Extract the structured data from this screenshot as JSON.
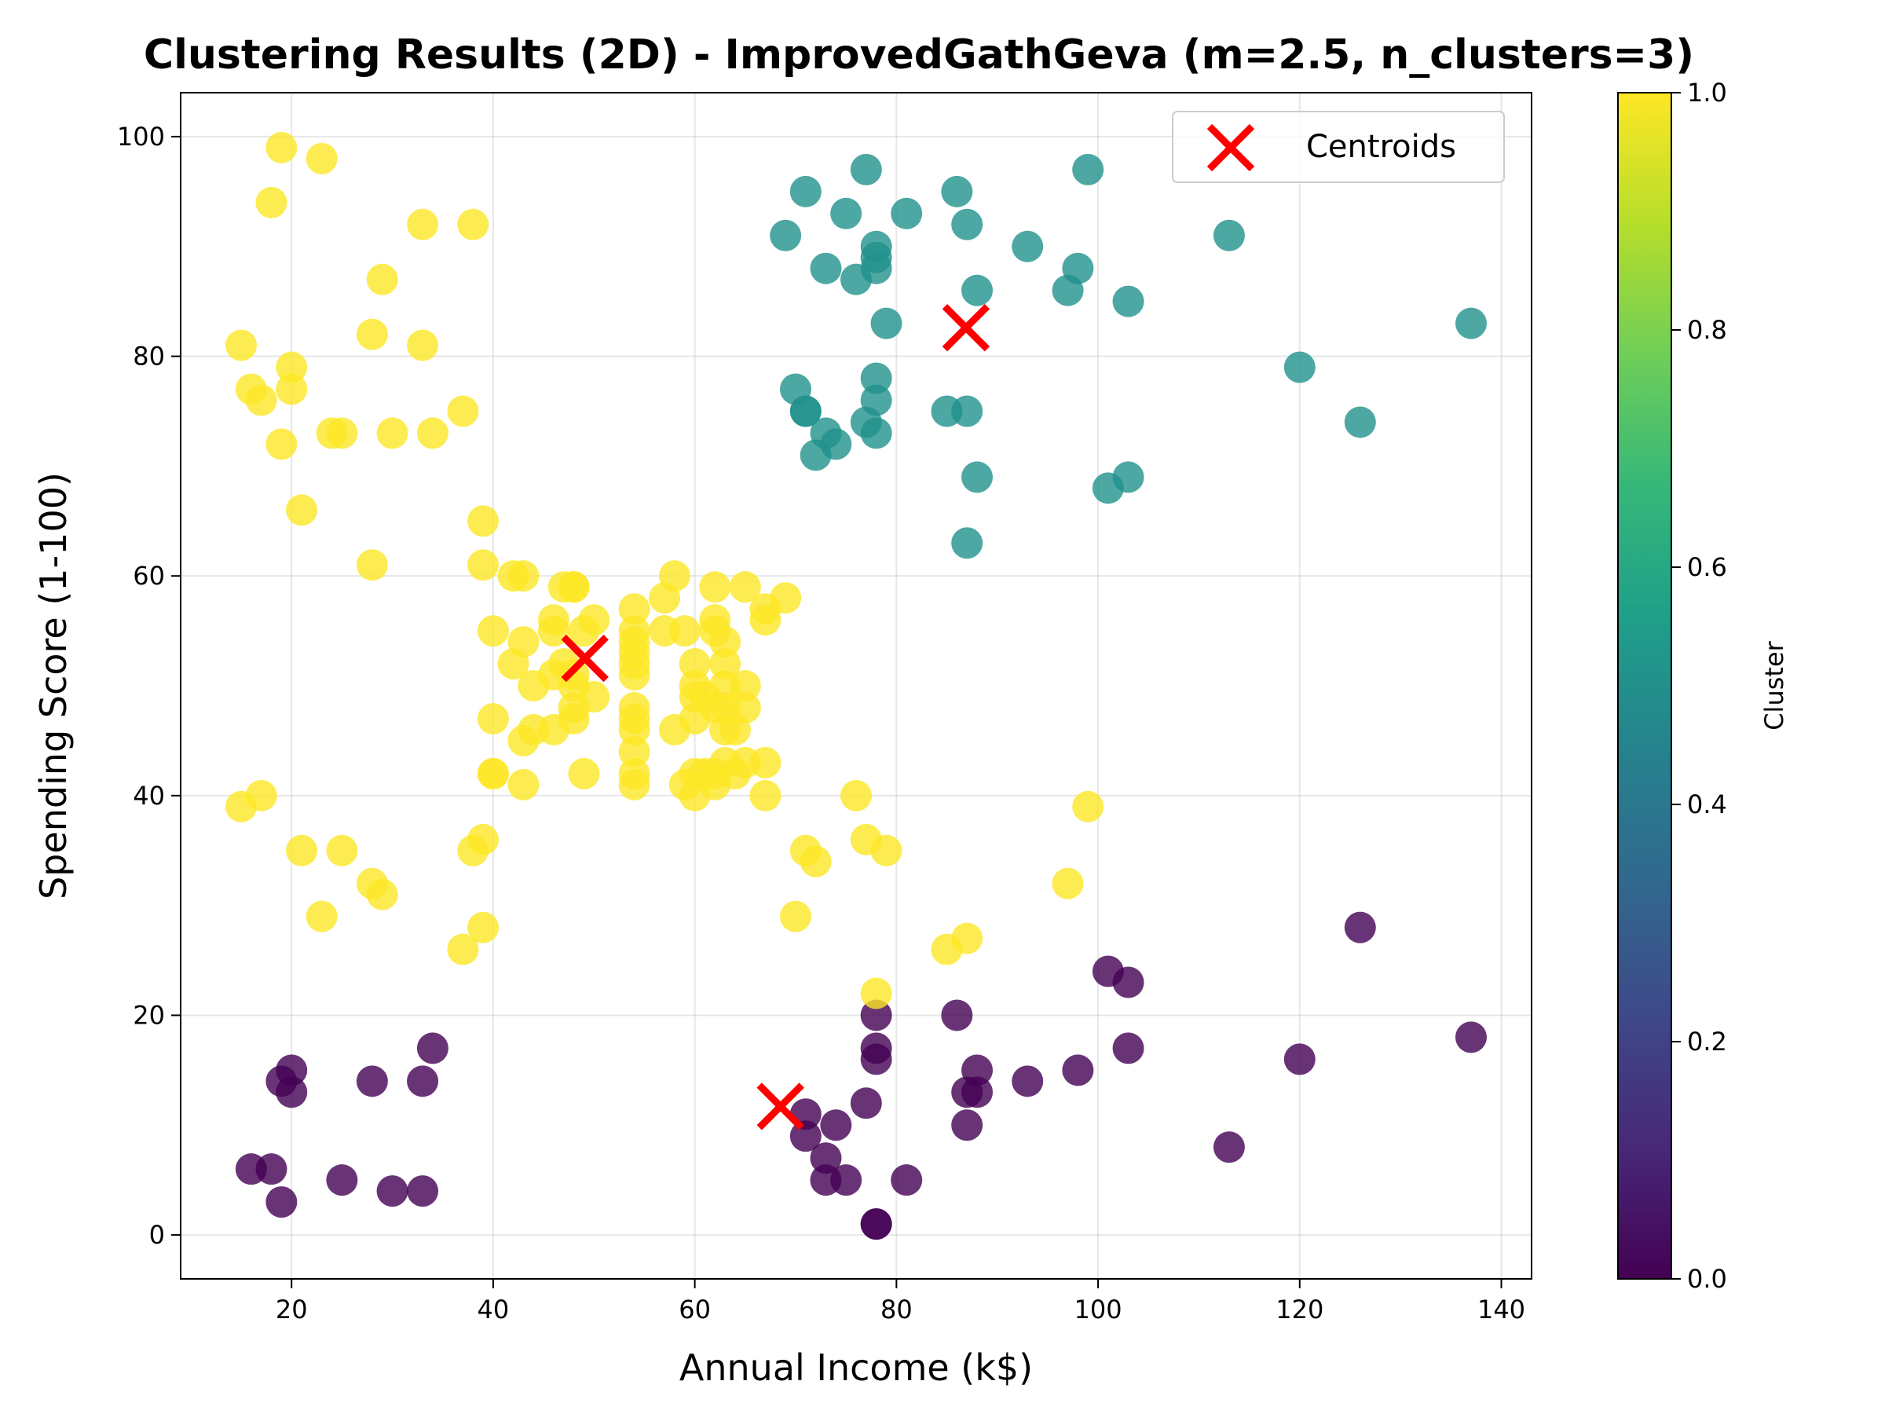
{
  "chart_data": {
    "type": "scatter",
    "title": "Clustering Results (2D) - ImprovedGathGeva (m=2.5, n_clusters=3)",
    "xlabel": "Annual Income (k$)",
    "ylabel": "Spending Score (1-100)",
    "xlim": [
      9,
      143
    ],
    "ylim": [
      -4,
      104
    ],
    "xticks": [
      20,
      40,
      60,
      80,
      100,
      120,
      140
    ],
    "yticks": [
      0,
      20,
      40,
      60,
      80,
      100
    ],
    "grid": true,
    "legend": {
      "position": "top-right",
      "entries": [
        "Centroids"
      ]
    },
    "colorbar": {
      "label": "Cluster",
      "colormap": "viridis",
      "range": [
        0.0,
        1.0
      ],
      "ticks": [
        "0.0",
        "0.2",
        "0.4",
        "0.6",
        "0.8",
        "1.0"
      ]
    },
    "cluster_colors": {
      "0.0": "#440154",
      "0.5": "#21918c",
      "1.0": "#fde725"
    },
    "centroid_color": "#ff0000",
    "series": [
      {
        "cluster_value": 0.0,
        "points": [
          [
            16,
            6
          ],
          [
            18,
            6
          ],
          [
            19,
            3
          ],
          [
            19,
            14
          ],
          [
            20,
            15
          ],
          [
            20,
            13
          ],
          [
            25,
            5
          ],
          [
            28,
            14
          ],
          [
            30,
            4
          ],
          [
            33,
            4
          ],
          [
            33,
            14
          ],
          [
            34,
            17
          ],
          [
            71,
            11
          ],
          [
            71,
            9
          ],
          [
            73,
            7
          ],
          [
            73,
            5
          ],
          [
            74,
            10
          ],
          [
            75,
            5
          ],
          [
            77,
            12
          ],
          [
            78,
            1
          ],
          [
            78,
            1
          ],
          [
            78,
            16
          ],
          [
            78,
            17
          ],
          [
            78,
            20
          ],
          [
            81,
            5
          ],
          [
            86,
            20
          ],
          [
            87,
            10
          ],
          [
            87,
            13
          ],
          [
            88,
            13
          ],
          [
            88,
            15
          ],
          [
            93,
            14
          ],
          [
            98,
            15
          ],
          [
            101,
            24
          ],
          [
            103,
            17
          ],
          [
            103,
            23
          ],
          [
            113,
            8
          ],
          [
            120,
            16
          ],
          [
            126,
            28
          ],
          [
            137,
            18
          ]
        ]
      },
      {
        "cluster_value": 0.5,
        "points": [
          [
            69,
            91
          ],
          [
            70,
            77
          ],
          [
            71,
            95
          ],
          [
            71,
            75
          ],
          [
            71,
            75
          ],
          [
            72,
            71
          ],
          [
            73,
            88
          ],
          [
            73,
            73
          ],
          [
            74,
            72
          ],
          [
            75,
            93
          ],
          [
            76,
            87
          ],
          [
            77,
            97
          ],
          [
            77,
            74
          ],
          [
            78,
            90
          ],
          [
            78,
            89
          ],
          [
            78,
            88
          ],
          [
            78,
            78
          ],
          [
            78,
            76
          ],
          [
            78,
            73
          ],
          [
            79,
            83
          ],
          [
            81,
            93
          ],
          [
            85,
            75
          ],
          [
            86,
            95
          ],
          [
            87,
            92
          ],
          [
            87,
            75
          ],
          [
            87,
            63
          ],
          [
            88,
            86
          ],
          [
            88,
            69
          ],
          [
            93,
            90
          ],
          [
            97,
            86
          ],
          [
            98,
            88
          ],
          [
            99,
            97
          ],
          [
            101,
            68
          ],
          [
            103,
            85
          ],
          [
            103,
            69
          ],
          [
            113,
            91
          ],
          [
            120,
            79
          ],
          [
            126,
            74
          ],
          [
            137,
            83
          ]
        ]
      },
      {
        "cluster_value": 1.0,
        "points": [
          [
            15,
            39
          ],
          [
            15,
            81
          ],
          [
            16,
            77
          ],
          [
            17,
            40
          ],
          [
            17,
            76
          ],
          [
            18,
            94
          ],
          [
            19,
            99
          ],
          [
            19,
            72
          ],
          [
            20,
            77
          ],
          [
            20,
            79
          ],
          [
            21,
            66
          ],
          [
            21,
            35
          ],
          [
            23,
            98
          ],
          [
            23,
            29
          ],
          [
            24,
            73
          ],
          [
            25,
            73
          ],
          [
            25,
            35
          ],
          [
            28,
            82
          ],
          [
            28,
            61
          ],
          [
            28,
            32
          ],
          [
            29,
            87
          ],
          [
            29,
            31
          ],
          [
            30,
            73
          ],
          [
            33,
            92
          ],
          [
            33,
            81
          ],
          [
            34,
            73
          ],
          [
            37,
            75
          ],
          [
            37,
            26
          ],
          [
            38,
            92
          ],
          [
            38,
            35
          ],
          [
            39,
            65
          ],
          [
            39,
            61
          ],
          [
            39,
            36
          ],
          [
            39,
            28
          ],
          [
            40,
            55
          ],
          [
            40,
            47
          ],
          [
            40,
            42
          ],
          [
            40,
            42
          ],
          [
            42,
            52
          ],
          [
            42,
            60
          ],
          [
            43,
            54
          ],
          [
            43,
            60
          ],
          [
            43,
            45
          ],
          [
            43,
            41
          ],
          [
            44,
            50
          ],
          [
            44,
            46
          ],
          [
            46,
            51
          ],
          [
            46,
            46
          ],
          [
            46,
            56
          ],
          [
            46,
            55
          ],
          [
            47,
            52
          ],
          [
            47,
            59
          ],
          [
            48,
            51
          ],
          [
            48,
            59
          ],
          [
            48,
            50
          ],
          [
            48,
            48
          ],
          [
            48,
            59
          ],
          [
            48,
            47
          ],
          [
            49,
            55
          ],
          [
            49,
            42
          ],
          [
            50,
            49
          ],
          [
            50,
            56
          ],
          [
            54,
            47
          ],
          [
            54,
            54
          ],
          [
            54,
            53
          ],
          [
            54,
            48
          ],
          [
            54,
            52
          ],
          [
            54,
            42
          ],
          [
            54,
            51
          ],
          [
            54,
            55
          ],
          [
            54,
            41
          ],
          [
            54,
            44
          ],
          [
            54,
            57
          ],
          [
            54,
            46
          ],
          [
            57,
            58
          ],
          [
            57,
            55
          ],
          [
            58,
            60
          ],
          [
            58,
            46
          ],
          [
            59,
            55
          ],
          [
            59,
            41
          ],
          [
            60,
            49
          ],
          [
            60,
            40
          ],
          [
            60,
            42
          ],
          [
            60,
            52
          ],
          [
            60,
            47
          ],
          [
            60,
            50
          ],
          [
            61,
            42
          ],
          [
            61,
            49
          ],
          [
            62,
            41
          ],
          [
            62,
            48
          ],
          [
            62,
            59
          ],
          [
            62,
            55
          ],
          [
            62,
            56
          ],
          [
            62,
            42
          ],
          [
            63,
            50
          ],
          [
            63,
            46
          ],
          [
            63,
            43
          ],
          [
            63,
            48
          ],
          [
            63,
            52
          ],
          [
            63,
            54
          ],
          [
            64,
            42
          ],
          [
            64,
            46
          ],
          [
            65,
            48
          ],
          [
            65,
            50
          ],
          [
            65,
            43
          ],
          [
            65,
            59
          ],
          [
            67,
            43
          ],
          [
            67,
            57
          ],
          [
            67,
            56
          ],
          [
            67,
            40
          ],
          [
            69,
            58
          ],
          [
            70,
            29
          ],
          [
            71,
            35
          ],
          [
            72,
            34
          ],
          [
            76,
            40
          ],
          [
            77,
            36
          ],
          [
            78,
            22
          ],
          [
            79,
            35
          ],
          [
            85,
            26
          ],
          [
            87,
            27
          ],
          [
            97,
            32
          ],
          [
            99,
            39
          ]
        ]
      }
    ],
    "centroids": [
      [
        49.1,
        52.5
      ],
      [
        86.9,
        82.6
      ],
      [
        68.5,
        11.7
      ]
    ]
  }
}
